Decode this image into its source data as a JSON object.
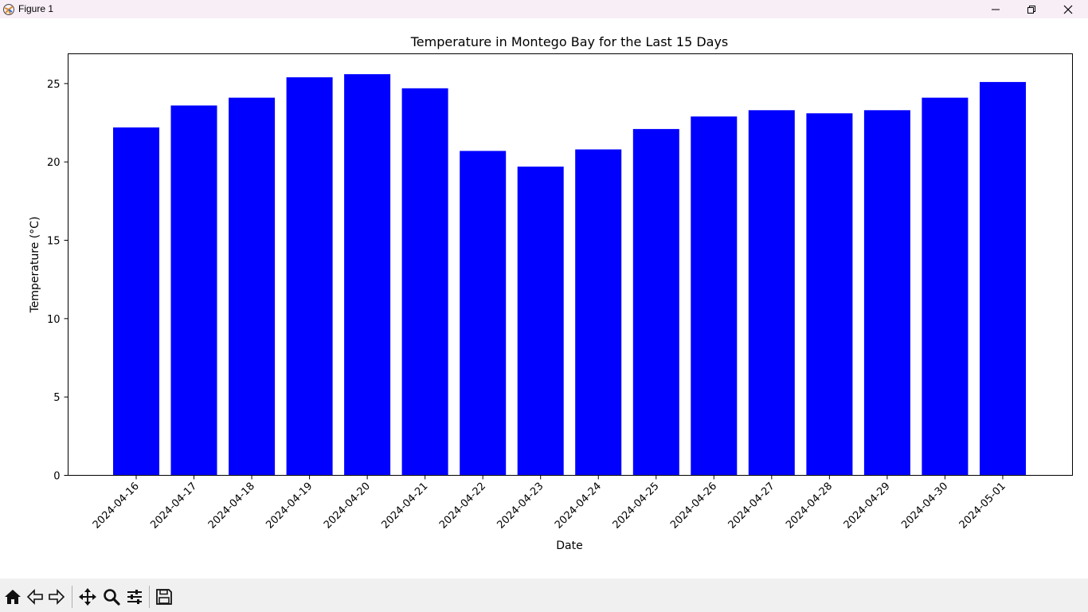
{
  "window": {
    "title": "Figure 1",
    "controls": [
      "minimize-icon",
      "restore-icon",
      "close-icon"
    ]
  },
  "toolbar": {
    "buttons": [
      "home-icon",
      "back-arrow-icon",
      "forward-arrow-icon",
      "pan-move-icon",
      "zoom-magnifier-icon",
      "configure-subplots-icon",
      "save-floppy-icon"
    ]
  },
  "colors": {
    "bar": "#0000ff",
    "axis": "#000000",
    "background": "#ffffff"
  },
  "chart_data": {
    "type": "bar",
    "title": "Temperature in Montego Bay for the Last 15 Days",
    "xlabel": "Date",
    "ylabel": "Temperature (°C)",
    "ylim": [
      0,
      26.9
    ],
    "yticks": [
      0,
      5,
      10,
      15,
      20,
      25
    ],
    "categories": [
      "2024-04-16",
      "2024-04-17",
      "2024-04-18",
      "2024-04-19",
      "2024-04-20",
      "2024-04-21",
      "2024-04-22",
      "2024-04-23",
      "2024-04-24",
      "2024-04-25",
      "2024-04-26",
      "2024-04-27",
      "2024-04-28",
      "2024-04-29",
      "2024-04-30",
      "2024-05-01"
    ],
    "values": [
      22.2,
      23.6,
      24.1,
      25.4,
      25.6,
      24.7,
      20.7,
      19.7,
      20.8,
      22.1,
      22.9,
      23.3,
      23.1,
      23.3,
      24.1,
      25.1
    ],
    "grid": false,
    "legend": "none"
  }
}
